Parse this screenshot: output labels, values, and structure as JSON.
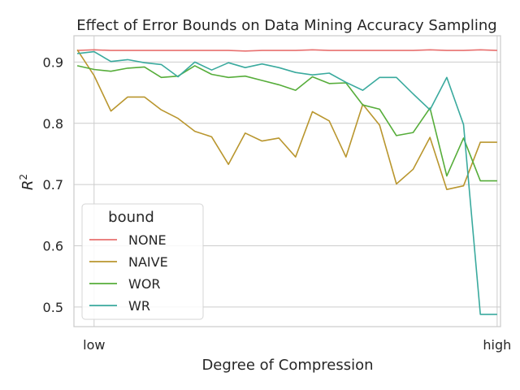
{
  "chart_data": {
    "type": "line",
    "title": "Effect of Error Bounds on Data Mining Accuracy Sampling",
    "xlabel": "Degree of Compression",
    "ylabel_base": "R",
    "ylabel_sup": "2",
    "x_ticks": [
      {
        "x": 1,
        "label": "low"
      },
      {
        "x": 25,
        "label": "high"
      }
    ],
    "xlim": [
      -0.2,
      25.2
    ],
    "y_ticks": [
      0.5,
      0.6,
      0.7,
      0.8,
      0.9
    ],
    "ylim": [
      0.468,
      0.943
    ],
    "grid": true,
    "legend": {
      "title": "bound",
      "placement": "lower-left"
    },
    "x": [
      0,
      1,
      2,
      3,
      4,
      5,
      6,
      7,
      8,
      9,
      10,
      11,
      12,
      13,
      14,
      15,
      16,
      17,
      18,
      19,
      20,
      21,
      22,
      23,
      24,
      25
    ],
    "series": [
      {
        "name": "NONE",
        "color": "#e8706f",
        "values": [
          0.919,
          0.92,
          0.919,
          0.919,
          0.919,
          0.919,
          0.919,
          0.919,
          0.919,
          0.919,
          0.918,
          0.919,
          0.919,
          0.919,
          0.92,
          0.919,
          0.919,
          0.919,
          0.919,
          0.919,
          0.919,
          0.92,
          0.919,
          0.919,
          0.92,
          0.919
        ]
      },
      {
        "name": "NAIVE",
        "color": "#b9962e",
        "values": [
          0.92,
          0.878,
          0.82,
          0.843,
          0.843,
          0.822,
          0.808,
          0.787,
          0.778,
          0.733,
          0.784,
          0.771,
          0.776,
          0.745,
          0.819,
          0.804,
          0.745,
          0.831,
          0.797,
          0.701,
          0.725,
          0.777,
          0.692,
          0.698,
          0.769,
          0.769
        ]
      },
      {
        "name": "WOR",
        "color": "#56ad3a",
        "values": [
          0.894,
          0.888,
          0.885,
          0.89,
          0.892,
          0.875,
          0.877,
          0.894,
          0.88,
          0.875,
          0.877,
          0.87,
          0.863,
          0.854,
          0.876,
          0.865,
          0.866,
          0.83,
          0.823,
          0.78,
          0.785,
          0.825,
          0.714,
          0.776,
          0.706,
          0.706
        ]
      },
      {
        "name": "WR",
        "color": "#3aaa9e",
        "values": [
          0.914,
          0.917,
          0.901,
          0.904,
          0.899,
          0.896,
          0.876,
          0.9,
          0.887,
          0.899,
          0.891,
          0.897,
          0.891,
          0.883,
          0.879,
          0.882,
          0.867,
          0.854,
          0.875,
          0.875,
          0.848,
          0.822,
          0.875,
          0.798,
          0.488,
          0.488
        ]
      }
    ]
  }
}
